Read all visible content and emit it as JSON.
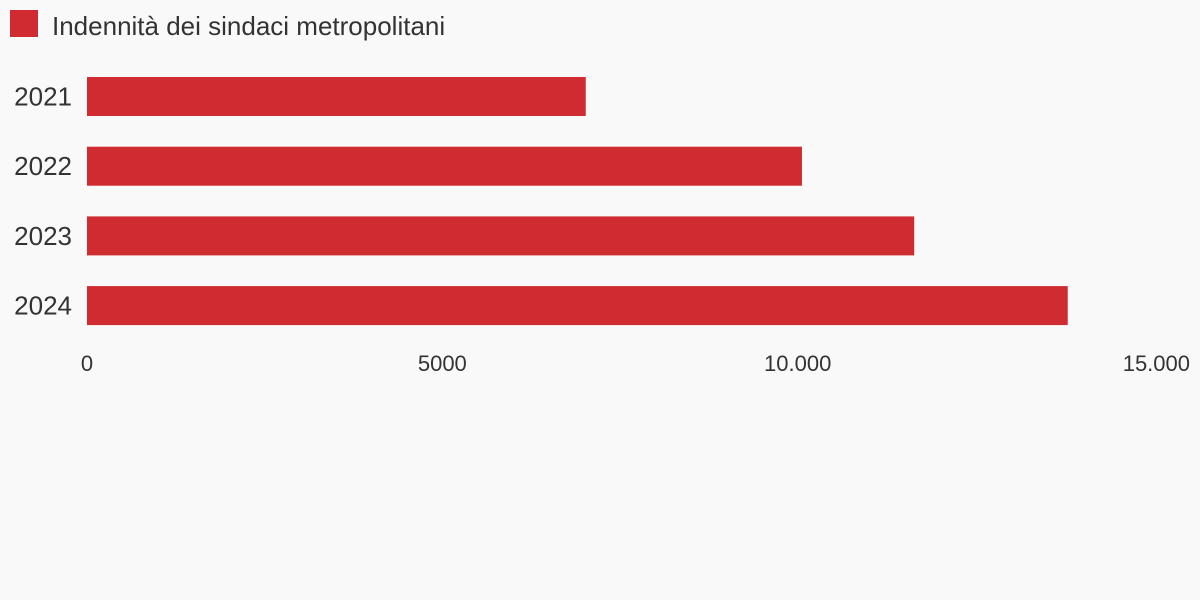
{
  "chart_data": {
    "type": "bar",
    "orientation": "horizontal",
    "categories": [
      "2021",
      "2022",
      "2023",
      "2024"
    ],
    "series": [
      {
        "name": "Indennità dei sindaci metropolitani",
        "color": "#cf2b31",
        "values": [
          7018,
          10060,
          11640,
          13800
        ]
      }
    ],
    "xlim": [
      0,
      15000
    ],
    "x_ticks": [
      {
        "value": 0,
        "label": "0"
      },
      {
        "value": 5000,
        "label": "5000"
      },
      {
        "value": 10000,
        "label": "10.000"
      },
      {
        "value": 15000,
        "label": "15.000"
      }
    ],
    "legend": {
      "position": "top-left",
      "label": "Indennità dei sindaci metropolitani"
    },
    "grid": false,
    "background": "#f9f9f9"
  }
}
